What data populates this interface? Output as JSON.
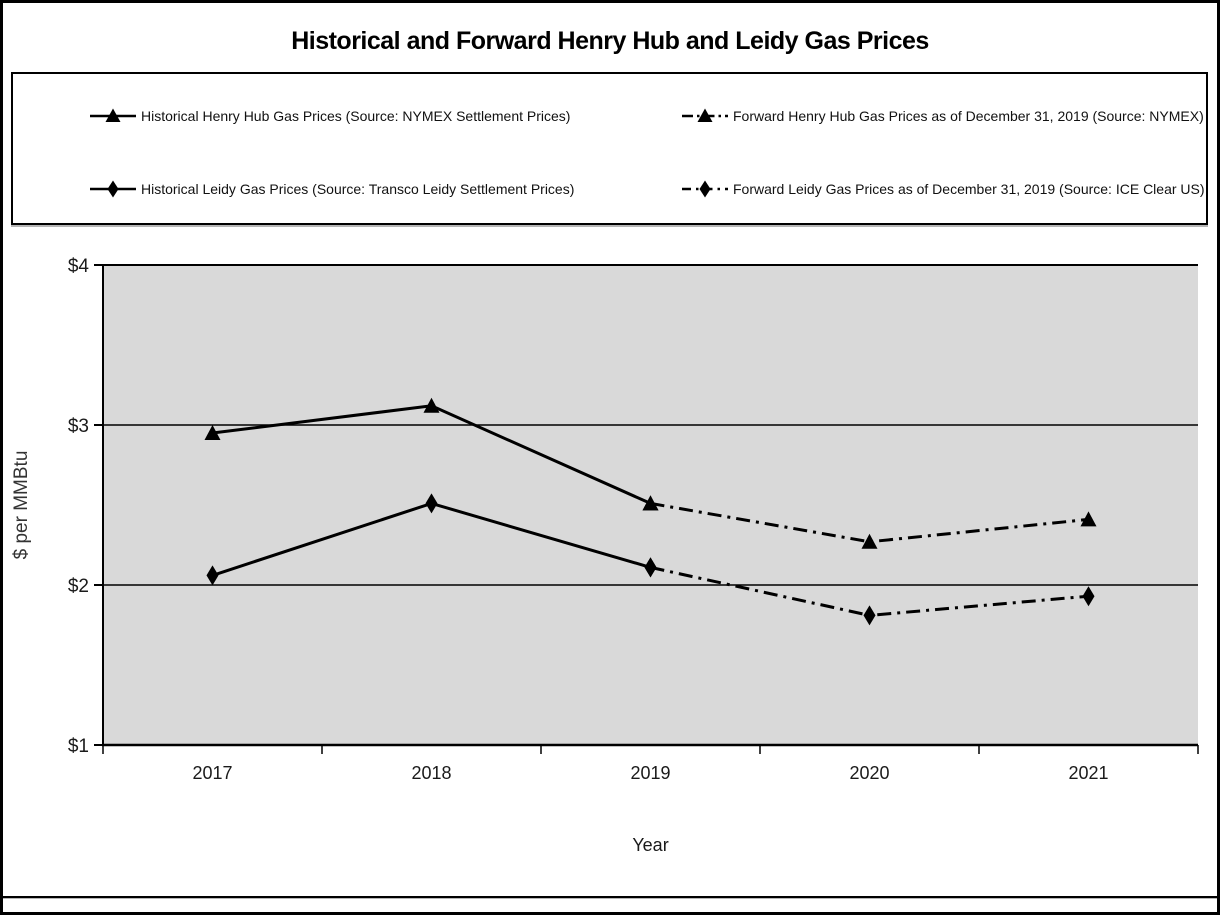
{
  "title": "Historical and Forward Henry Hub and Leidy Gas Prices",
  "legend": {
    "items": [
      {
        "label": "Historical Henry Hub Gas Prices (Source: NYMEX Settlement Prices)",
        "marker": "triangle",
        "line": "solid"
      },
      {
        "label": "Forward Henry Hub Gas Prices as of December 31, 2019 (Source: NYMEX)",
        "marker": "triangle",
        "line": "dashdot"
      },
      {
        "label": "Historical Leidy Gas Prices (Source: Transco Leidy Settlement Prices)",
        "marker": "diamond",
        "line": "solid"
      },
      {
        "label": "Forward Leidy Gas Prices as of December 31, 2019 (Source: ICE Clear US)",
        "marker": "diamond",
        "line": "dashdot"
      }
    ]
  },
  "chart_data": {
    "type": "line",
    "title": "Historical and Forward Henry Hub and Leidy Gas Prices",
    "xlabel": "Year",
    "ylabel": "$ per MMBtu",
    "categories": [
      "2017",
      "2018",
      "2019",
      "2020",
      "2021"
    ],
    "yticks": [
      4,
      3,
      2,
      1
    ],
    "ytick_labels": [
      "$4",
      "$3",
      "$2",
      "$1"
    ],
    "ylim": [
      1,
      4
    ],
    "grid": "horizontal",
    "legend_position": "top",
    "plot_bg_color": "#d9d9d9",
    "line_color": "#000000",
    "series": [
      {
        "name": "Historical Henry Hub Gas Prices (Source: NYMEX Settlement Prices)",
        "marker": "triangle",
        "line": "solid",
        "x": [
          "2017",
          "2018",
          "2019"
        ],
        "values": [
          2.95,
          3.12,
          2.51
        ]
      },
      {
        "name": "Forward Henry Hub Gas Prices as of December 31, 2019 (Source: NYMEX)",
        "marker": "triangle",
        "line": "dashdot",
        "x": [
          "2019",
          "2020",
          "2021"
        ],
        "values": [
          2.51,
          2.27,
          2.41
        ]
      },
      {
        "name": "Historical Leidy Gas Prices (Source: Transco Leidy Settlement Prices)",
        "marker": "diamond",
        "line": "solid",
        "x": [
          "2017",
          "2018",
          "2019"
        ],
        "values": [
          2.06,
          2.51,
          2.11
        ]
      },
      {
        "name": "Forward Leidy Gas Prices as of December 31, 2019 (Source: ICE Clear US)",
        "marker": "diamond",
        "line": "dashdot",
        "x": [
          "2019",
          "2020",
          "2021"
        ],
        "values": [
          2.11,
          1.81,
          1.93
        ]
      }
    ]
  }
}
